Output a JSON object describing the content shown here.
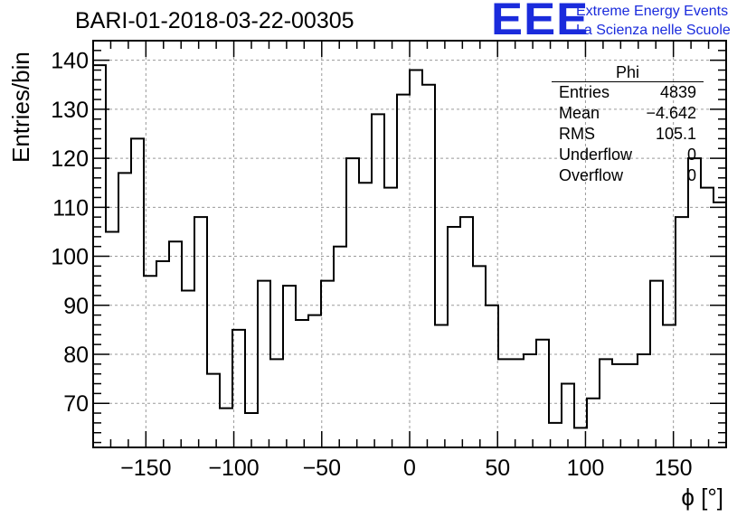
{
  "header": {
    "run_title": "BARI-01-2018-03-22-00305",
    "logo_text": "EEE",
    "brand_line1": "Extreme Energy Events",
    "brand_line2": "La Scienza nelle Scuole"
  },
  "stats_box": {
    "title": "Phi",
    "rows": [
      {
        "label": "Entries",
        "value": "4839"
      },
      {
        "label": "Mean",
        "value": "−4.642"
      },
      {
        "label": "RMS",
        "value": "105.1"
      },
      {
        "label": "Underflow",
        "value": "0"
      },
      {
        "label": "Overflow",
        "value": "0"
      }
    ]
  },
  "colors": {
    "brand": "#1a2bdc",
    "line": "#000000",
    "grid": "#9a9a9a"
  },
  "chart_data": {
    "type": "histogram",
    "xlabel": "ϕ [°]",
    "ylabel": "Entries/bin",
    "xlim": [
      -180,
      180
    ],
    "ylim": [
      61,
      144
    ],
    "grid": true,
    "bin_width": 7.2,
    "xticks": [
      -150,
      -100,
      -50,
      0,
      50,
      100,
      150
    ],
    "xtick_labels": [
      "−150",
      "−100",
      "−50",
      "0",
      "50",
      "100",
      "150"
    ],
    "yticks": [
      70,
      80,
      90,
      100,
      110,
      120,
      130,
      140
    ],
    "ytick_labels": [
      "70",
      "80",
      "90",
      "100",
      "110",
      "120",
      "130",
      "140"
    ],
    "values": [
      139,
      105,
      117,
      124,
      96,
      99,
      103,
      93,
      108,
      76,
      69,
      85,
      68,
      95,
      79,
      94,
      87,
      88,
      95,
      102,
      120,
      115,
      129,
      114,
      133,
      138,
      135,
      86,
      106,
      108,
      98,
      90,
      79,
      79,
      80,
      83,
      66,
      74,
      65,
      71,
      79,
      78,
      78,
      80,
      95,
      86,
      108,
      120,
      114,
      111
    ]
  }
}
